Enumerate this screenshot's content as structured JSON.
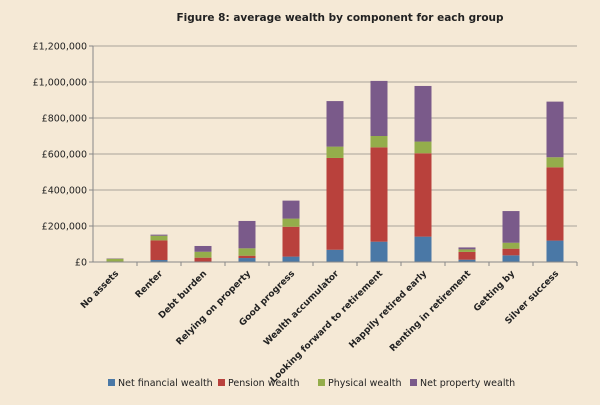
{
  "chart_data": {
    "type": "bar",
    "stacked": true,
    "title": "Figure 8: average wealth by component for each group",
    "xlabel": "",
    "ylabel": "",
    "ylim": [
      0,
      1200000
    ],
    "yticks": [
      "£0",
      "£200,000",
      "£400,000",
      "£600,000",
      "£800,000",
      "£1,000,000",
      "£1,200,000"
    ],
    "grid": true,
    "legend_position": "bottom",
    "categories": [
      "No assets",
      "Renter",
      "Debt burden",
      "Relying on property",
      "Good progress",
      "Wealth accumulator",
      "Looking forward to retirement",
      "Happily retired early",
      "Renting in retirement",
      "Getting by",
      "Silver success"
    ],
    "series": [
      {
        "name": "Net financial wealth",
        "color": "#4a78a6",
        "values": [
          1000,
          11000,
          2000,
          22000,
          30000,
          68000,
          113000,
          141000,
          13000,
          37000,
          119000
        ]
      },
      {
        "name": "Pension wealth",
        "color": "#b9413c",
        "values": [
          2000,
          109000,
          22000,
          13000,
          166000,
          510000,
          524000,
          463000,
          43000,
          37000,
          407000
        ]
      },
      {
        "name": "Physical wealth",
        "color": "#94ad4b",
        "values": [
          15000,
          26000,
          33000,
          41000,
          45000,
          63000,
          63000,
          65000,
          14000,
          33000,
          56000
        ]
      },
      {
        "name": "Net property wealth",
        "color": "#7a5a8a",
        "values": [
          2000,
          6000,
          32000,
          152000,
          100000,
          253000,
          306000,
          309000,
          11000,
          176000,
          309000
        ]
      }
    ]
  }
}
